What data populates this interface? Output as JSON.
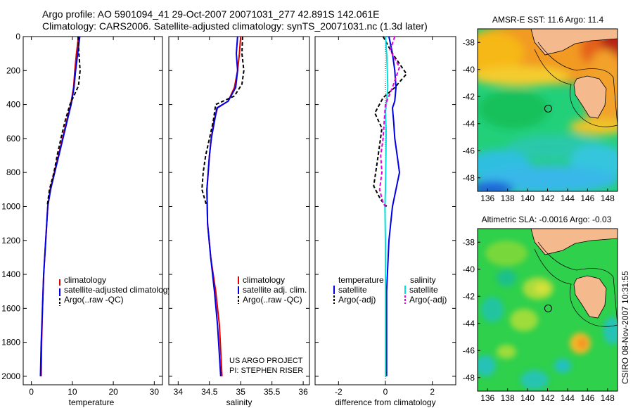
{
  "header": {
    "line1": "Argo profile: AO 5901094_41 29-Oct-2007 20071031_277 42.891S 142.061E",
    "line2": "Climatology: CARS2006. Satellite-adjusted climatology: synTS_20071031.nc (1.3d later)"
  },
  "colors": {
    "clim": "#e00000",
    "sat": "#0000e6",
    "argo": "#000000",
    "sal_sat": "#00e0e0",
    "sal_argo": "#e000e0",
    "land": "#f5b98e",
    "coast": "#000000"
  },
  "chart_data": [
    {
      "type": "line",
      "id": "temperature",
      "xlabel": "temperature",
      "ylabel": "",
      "xlim": [
        -2,
        32
      ],
      "ylim": [
        2050,
        0
      ],
      "xticks": [
        0,
        10,
        20,
        30
      ],
      "yticks": [
        0,
        200,
        400,
        600,
        800,
        1000,
        1200,
        1400,
        1600,
        1800,
        2000
      ],
      "legend": [
        "climatology",
        "satellite-adjusted climatology",
        "Argo(..raw -QC)"
      ],
      "series": [
        {
          "name": "climatology",
          "style": "solid",
          "color": "clim",
          "x": [
            11.5,
            11.0,
            10.6,
            10.3,
            9.6,
            8.6,
            7.6,
            6.6,
            5.6,
            4.6,
            4.0,
            3.5,
            3.0,
            2.7,
            2.5,
            2.4
          ],
          "y": [
            0,
            100,
            200,
            300,
            400,
            500,
            600,
            700,
            800,
            900,
            1000,
            1200,
            1400,
            1600,
            1800,
            2000
          ]
        },
        {
          "name": "satellite",
          "style": "solid",
          "color": "sat",
          "x": [
            11.8,
            11.3,
            10.8,
            10.4,
            9.7,
            8.7,
            7.7,
            6.7,
            5.7,
            4.7,
            4.0,
            3.5,
            3.0,
            2.7,
            2.4,
            2.2
          ],
          "y": [
            0,
            100,
            200,
            300,
            400,
            500,
            600,
            700,
            800,
            900,
            1000,
            1200,
            1400,
            1600,
            1800,
            2000
          ]
        },
        {
          "name": "argo",
          "style": "dashed",
          "color": "argo",
          "x": [
            11.4,
            11.6,
            11.9,
            11.5,
            9.4,
            8.2,
            7.2,
            6.3,
            5.5,
            4.4,
            3.9
          ],
          "y": [
            0,
            100,
            200,
            290,
            400,
            500,
            600,
            700,
            800,
            900,
            990
          ]
        }
      ]
    },
    {
      "type": "line",
      "id": "salinity",
      "xlabel": "salinity",
      "ylabel": "",
      "xlim": [
        33.85,
        36.1
      ],
      "ylim": [
        2050,
        0
      ],
      "xticks": [
        34,
        34.5,
        35,
        35.5,
        36
      ],
      "xticklabels": [
        "34",
        "34.5",
        "35",
        "35.5",
        "36"
      ],
      "legend": [
        "climatology",
        "satellite adj. clim.",
        "Argo(..raw -QC)"
      ],
      "series": [
        {
          "name": "climatology",
          "style": "solid",
          "color": "clim",
          "x": [
            35.0,
            34.98,
            34.95,
            34.9,
            34.8,
            34.63,
            34.57,
            34.53,
            34.5,
            34.48,
            34.46,
            34.47,
            34.52,
            34.6,
            34.66,
            34.7
          ],
          "y": [
            0,
            100,
            200,
            300,
            380,
            420,
            500,
            600,
            700,
            800,
            900,
            1100,
            1300,
            1500,
            1700,
            2000
          ]
        },
        {
          "name": "satellite",
          "style": "solid",
          "color": "sat",
          "x": [
            34.95,
            34.93,
            34.95,
            34.92,
            34.8,
            34.62,
            34.58,
            34.53,
            34.5,
            34.48,
            34.46,
            34.47,
            34.52,
            34.58,
            34.63,
            34.68
          ],
          "y": [
            0,
            100,
            200,
            300,
            380,
            420,
            500,
            600,
            700,
            800,
            900,
            1100,
            1300,
            1500,
            1700,
            2000
          ]
        },
        {
          "name": "argo",
          "style": "dashed",
          "color": "argo",
          "x": [
            35.03,
            35.02,
            35.05,
            35.02,
            34.9,
            34.6,
            34.56,
            34.5,
            34.44,
            34.4,
            34.38,
            34.45
          ],
          "y": [
            0,
            100,
            200,
            280,
            350,
            400,
            500,
            600,
            700,
            800,
            900,
            990
          ]
        }
      ],
      "credit": [
        "US ARGO PROJECT",
        "PI: STEPHEN RISER"
      ]
    },
    {
      "type": "line",
      "id": "difference",
      "xlabel": "difference from climatology",
      "ylabel": "",
      "xlim": [
        -3,
        3
      ],
      "ylim": [
        2050,
        0
      ],
      "xticks": [
        -2,
        0,
        2
      ],
      "xticklabels": [
        "-2",
        "0",
        "2"
      ],
      "legend_left_title": "temperature",
      "legend_right_title": "salinity",
      "legend_left": [
        "satellite",
        "Argo(-adj)"
      ],
      "legend_right": [
        "satellite",
        "Argo(-adj)"
      ],
      "series": [
        {
          "name": "temp_satellite",
          "style": "solid",
          "color": "sat",
          "x": [
            0.15,
            0.3,
            0.4,
            0.45,
            0.4,
            0.3,
            0.35,
            0.4,
            0.5,
            0.6,
            0.45,
            0.3,
            0.15,
            0.05,
            0.05,
            0.05
          ],
          "y": [
            0,
            100,
            200,
            300,
            380,
            420,
            500,
            600,
            700,
            800,
            900,
            1000,
            1200,
            1500,
            1800,
            2000
          ]
        },
        {
          "name": "temp_argo",
          "style": "dashed",
          "color": "argo",
          "x": [
            -0.1,
            0.3,
            0.9,
            0.4,
            -0.1,
            -0.45,
            -0.15,
            -0.25,
            -0.35,
            -0.5,
            -0.2,
            0.05
          ],
          "y": [
            0,
            100,
            220,
            300,
            360,
            450,
            540,
            640,
            740,
            880,
            960,
            1000
          ]
        },
        {
          "name": "sal_satellite",
          "style": "solid",
          "color": "sal_sat",
          "x": [
            0.0,
            0.05,
            0.08,
            0.1,
            0.05,
            0.0,
            0.03,
            0.02,
            0.0,
            -0.02,
            0.0,
            0.0,
            0.0,
            0.0
          ],
          "y": [
            0,
            100,
            200,
            300,
            380,
            450,
            550,
            700,
            900,
            1000,
            1200,
            1500,
            1800,
            2000
          ]
        },
        {
          "name": "sal_argo",
          "style": "dashed",
          "color": "sal_argo",
          "x": [
            0.4,
            0.2,
            0.6,
            0.3,
            0.0,
            -0.05,
            -0.1,
            -0.2,
            -0.15,
            -0.25,
            -0.1,
            0.0
          ],
          "y": [
            0,
            80,
            180,
            300,
            400,
            500,
            600,
            700,
            800,
            900,
            980,
            1000
          ]
        }
      ]
    },
    {
      "type": "heatmap",
      "id": "sst_map",
      "title": "AMSR-E SST: 11.6 Argo: 11.4",
      "xlim": [
        135,
        149
      ],
      "ylim": [
        -49,
        -37
      ],
      "xticks": [
        136,
        138,
        140,
        142,
        144,
        146,
        148
      ],
      "yticks": [
        -38,
        -40,
        -42,
        -44,
        -46,
        -48
      ],
      "marker": {
        "lon": 142.061,
        "lat": -42.891
      }
    },
    {
      "type": "heatmap",
      "id": "sla_map",
      "title": "Altimetric SLA: -0.0016 Argo: -0.03",
      "xlim": [
        135,
        149
      ],
      "ylim": [
        -49,
        -37
      ],
      "xticks": [
        136,
        138,
        140,
        142,
        144,
        146,
        148
      ],
      "yticks": [
        -38,
        -40,
        -42,
        -44,
        -46,
        -48
      ],
      "marker": {
        "lon": 142.061,
        "lat": -42.891
      }
    }
  ],
  "footer": {
    "stamp": "CSIRO 08-Nov-2007 10:31:55"
  }
}
